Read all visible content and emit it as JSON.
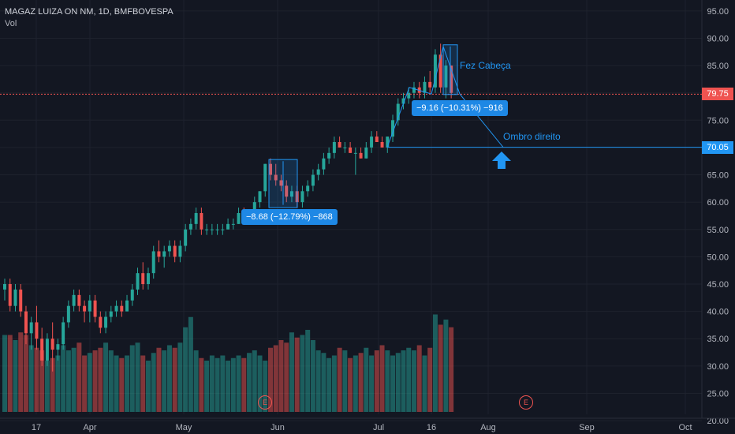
{
  "header": {
    "symbol": "MAGAZ LUIZA ON NM, 1D, BMFBOVESPA",
    "volume_label": "Vol"
  },
  "colors": {
    "up": "#26a69a",
    "down": "#ef5350",
    "line_blue": "#2196f3",
    "red_line": "#ef5350",
    "bg": "#131722"
  },
  "price_tags": [
    {
      "label": "79.75",
      "value": 79.75,
      "color": "#ef5350"
    },
    {
      "label": "70.05",
      "value": 70.05,
      "color": "#2196f3"
    }
  ],
  "measures": [
    {
      "label": "−8.68 (−12.79%) −868"
    },
    {
      "label": "−9.16 (−10.31%) −916"
    }
  ],
  "annotations": {
    "head": "Fez Cabeça",
    "right_shoulder": "Ombro direito"
  },
  "earnings": [
    {
      "label": "E"
    },
    {
      "label": "E"
    }
  ],
  "chart_data": {
    "type": "candlestick",
    "title": "MAGAZ LUIZA ON NM, 1D, BMFBOVESPA",
    "y_ticks": [
      "95.00",
      "90.00",
      "85.00",
      "80.00",
      "75.00",
      "70.00",
      "65.00",
      "60.00",
      "55.00",
      "50.00",
      "45.00",
      "40.00",
      "35.00",
      "30.00",
      "25.00",
      "20.00"
    ],
    "ylim": [
      19,
      97
    ],
    "x_ticks": [
      "17",
      "Apr",
      "May",
      "Jun",
      "Jul",
      "16",
      "Aug",
      "Sep",
      "Oct"
    ],
    "horizontal_lines": [
      79.75,
      70.05
    ],
    "candles": [
      [
        44,
        46,
        42,
        45
      ],
      [
        45,
        46,
        40,
        41
      ],
      [
        41,
        45,
        40,
        44
      ],
      [
        44,
        45,
        39,
        40
      ],
      [
        40,
        41,
        34,
        36
      ],
      [
        36,
        39,
        33,
        38
      ],
      [
        38,
        41,
        33,
        35
      ],
      [
        35,
        37,
        30,
        31
      ],
      [
        31,
        36,
        30,
        35
      ],
      [
        35,
        38,
        29,
        33
      ],
      [
        33,
        35,
        31,
        34
      ],
      [
        34,
        39,
        33,
        38
      ],
      [
        38,
        42,
        37,
        41
      ],
      [
        41,
        44,
        40,
        43
      ],
      [
        43,
        44,
        40,
        41
      ],
      [
        41,
        42,
        38,
        40
      ],
      [
        40,
        43,
        38,
        42
      ],
      [
        42,
        43,
        38,
        39
      ],
      [
        39,
        40,
        36,
        37
      ],
      [
        37,
        40,
        36,
        39
      ],
      [
        39,
        41,
        38,
        40
      ],
      [
        40,
        42,
        39,
        41
      ],
      [
        41,
        42,
        39,
        40
      ],
      [
        40,
        43,
        40,
        42
      ],
      [
        42,
        45,
        41,
        44
      ],
      [
        44,
        48,
        43,
        47
      ],
      [
        47,
        49,
        44,
        45
      ],
      [
        45,
        48,
        44,
        47
      ],
      [
        47,
        52,
        46,
        51
      ],
      [
        51,
        53,
        49,
        50
      ],
      [
        50,
        52,
        48,
        51
      ],
      [
        51,
        53,
        50,
        52
      ],
      [
        52,
        53,
        49,
        50
      ],
      [
        50,
        53,
        49,
        52
      ],
      [
        52,
        56,
        51,
        55
      ],
      [
        55,
        57,
        54,
        56
      ],
      [
        56,
        59,
        55,
        58
      ],
      [
        58,
        59,
        54,
        55
      ],
      [
        55,
        56,
        54,
        55
      ],
      [
        55,
        56,
        54,
        55
      ],
      [
        55,
        56,
        54,
        55
      ],
      [
        55,
        56,
        54,
        55
      ],
      [
        55,
        57,
        55,
        56
      ],
      [
        56,
        57,
        55,
        56
      ],
      [
        56,
        59,
        56,
        58
      ],
      [
        58,
        59,
        57,
        57
      ],
      [
        57,
        58,
        56,
        57
      ],
      [
        57,
        61,
        57,
        60
      ],
      [
        60,
        62,
        59,
        62
      ],
      [
        62,
        67,
        61,
        67
      ],
      [
        67,
        68,
        64,
        65
      ],
      [
        65,
        67,
        63,
        64
      ],
      [
        64,
        65,
        62,
        63
      ],
      [
        63,
        64,
        60,
        61
      ],
      [
        61,
        63,
        60,
        62
      ],
      [
        62,
        63,
        59,
        60
      ],
      [
        60,
        63,
        59,
        62
      ],
      [
        62,
        64,
        61,
        63
      ],
      [
        63,
        66,
        62,
        65
      ],
      [
        65,
        67,
        64,
        66
      ],
      [
        66,
        69,
        65,
        68
      ],
      [
        68,
        70,
        67,
        69
      ],
      [
        69,
        72,
        68,
        71
      ],
      [
        71,
        72,
        70,
        70
      ],
      [
        70,
        71,
        69,
        70
      ],
      [
        70,
        71,
        69,
        69
      ],
      [
        69,
        70,
        65,
        69
      ],
      [
        69,
        70,
        68,
        68
      ],
      [
        68,
        71,
        68,
        70
      ],
      [
        70,
        73,
        69,
        72
      ],
      [
        72,
        73,
        71,
        71
      ],
      [
        71,
        72,
        70,
        70
      ],
      [
        70,
        72,
        69,
        72
      ],
      [
        72,
        76,
        71,
        75
      ],
      [
        75,
        79,
        74,
        78
      ],
      [
        78,
        80,
        77,
        79
      ],
      [
        79,
        81,
        78,
        80
      ],
      [
        80,
        82,
        79,
        81
      ],
      [
        81,
        82,
        79,
        80
      ],
      [
        80,
        83,
        79,
        82
      ],
      [
        82,
        84,
        80,
        81
      ],
      [
        81,
        88,
        80,
        87
      ],
      [
        87,
        89,
        80,
        81
      ],
      [
        81,
        86,
        79,
        85
      ],
      [
        85,
        85,
        79,
        80
      ]
    ],
    "volumes": [
      30,
      30,
      28,
      31,
      30,
      26,
      25,
      24,
      20,
      21,
      22,
      26,
      24,
      25,
      27,
      22,
      23,
      24,
      25,
      27,
      24,
      22,
      21,
      22,
      26,
      27,
      22,
      20,
      23,
      25,
      24,
      26,
      25,
      27,
      33,
      37,
      24,
      21,
      20,
      22,
      21,
      22,
      20,
      21,
      22,
      21,
      23,
      24,
      22,
      20,
      25,
      26,
      28,
      27,
      31,
      29,
      30,
      32,
      28,
      24,
      23,
      21,
      22,
      25,
      24,
      21,
      22,
      23,
      25,
      22,
      24,
      26,
      24,
      22,
      23,
      24,
      25,
      24,
      26,
      22,
      25,
      38,
      34,
      36,
      33
    ]
  }
}
